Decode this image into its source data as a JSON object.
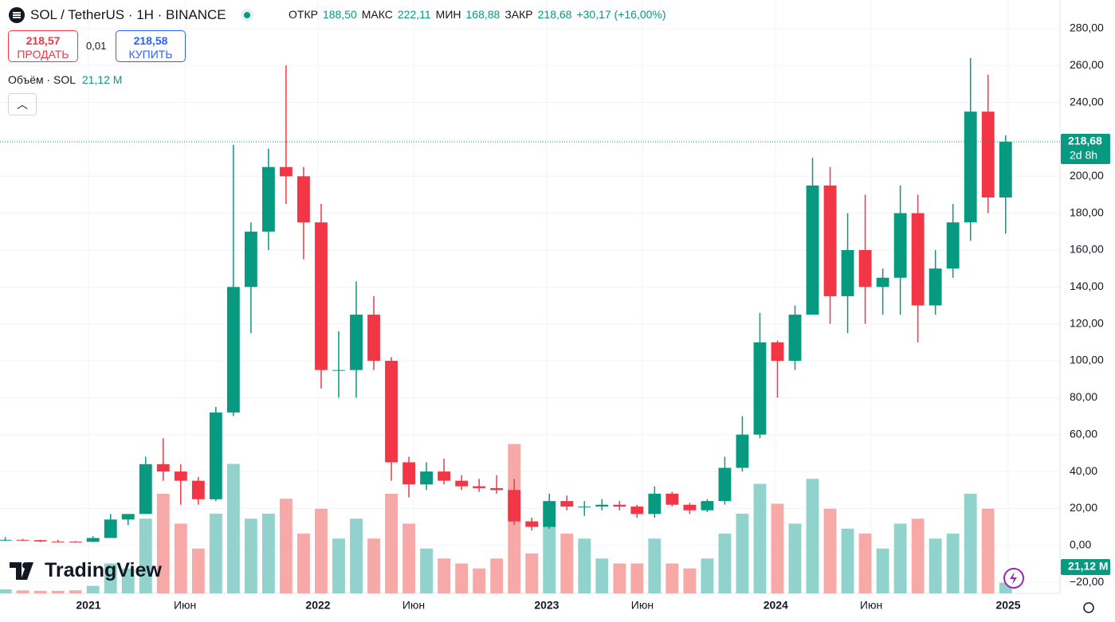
{
  "header": {
    "symbol": "SOL / TetherUS · 1H · BINANCE",
    "ohlc": [
      {
        "label": "ОТКР",
        "value": "188,50"
      },
      {
        "label": "МАКС",
        "value": "222,11"
      },
      {
        "label": "МИН",
        "value": "168,88"
      },
      {
        "label": "ЗАКР",
        "value": "218,68"
      }
    ],
    "change": "+30,17 (+16,00%)"
  },
  "trade": {
    "sell_price": "218,57",
    "sell_label": "ПРОДАТЬ",
    "spread": "0,01",
    "buy_price": "218,58",
    "buy_label": "КУПИТЬ"
  },
  "volume_legend": {
    "label": "Объём · SOL",
    "value": "21,12 M"
  },
  "logo": "TradingView",
  "chart_data": {
    "type": "candlestick",
    "up_color": "#089981",
    "down_color": "#f23645",
    "volume_up_color": "#92d2cc",
    "volume_down_color": "#f7a9a7",
    "candles": [
      [
        3,
        4.5,
        2.5,
        3
      ],
      [
        3,
        3.5,
        2.5,
        2.8
      ],
      [
        2.8,
        3,
        1.8,
        2.1
      ],
      [
        2.1,
        3,
        1.9,
        2
      ],
      [
        2,
        2.3,
        1.5,
        1.9
      ],
      [
        1.9,
        5,
        1.8,
        4
      ],
      [
        4,
        17,
        4,
        14
      ],
      [
        14,
        17,
        11,
        17
      ],
      [
        17,
        48,
        17,
        44
      ],
      [
        44,
        58,
        35,
        40
      ],
      [
        40,
        44,
        22,
        35
      ],
      [
        35,
        37,
        22,
        25
      ],
      [
        25,
        75,
        24,
        72
      ],
      [
        72,
        217,
        70,
        140
      ],
      [
        140,
        175,
        115,
        170
      ],
      [
        170,
        215,
        160,
        205
      ],
      [
        205,
        260,
        185,
        200
      ],
      [
        200,
        205,
        155,
        175
      ],
      [
        175,
        185,
        85,
        95
      ],
      [
        95,
        116,
        80,
        95
      ],
      [
        95,
        143,
        80,
        125
      ],
      [
        125,
        135,
        95,
        100
      ],
      [
        100,
        102,
        35,
        45
      ],
      [
        45,
        48,
        26,
        33
      ],
      [
        33,
        45,
        30,
        40
      ],
      [
        40,
        47,
        33,
        35
      ],
      [
        35,
        38,
        30,
        32
      ],
      [
        32,
        36,
        29,
        31
      ],
      [
        31,
        38,
        28,
        30
      ],
      [
        30,
        36,
        11,
        13
      ],
      [
        13,
        15,
        8,
        10
      ],
      [
        10,
        28,
        9,
        24
      ],
      [
        24,
        27,
        19,
        21
      ],
      [
        21,
        24,
        16,
        21
      ],
      [
        21,
        25,
        19,
        22
      ],
      [
        22,
        24,
        19,
        21
      ],
      [
        21,
        22,
        15,
        17
      ],
      [
        17,
        32,
        15,
        28
      ],
      [
        28,
        29,
        21,
        22
      ],
      [
        22,
        23,
        17,
        19
      ],
      [
        19,
        25,
        18,
        24
      ],
      [
        24,
        48,
        22,
        42
      ],
      [
        42,
        70,
        40,
        60
      ],
      [
        60,
        126,
        58,
        110
      ],
      [
        110,
        111,
        80,
        100
      ],
      [
        100,
        130,
        95,
        125
      ],
      [
        125,
        210,
        125,
        195
      ],
      [
        195,
        205,
        120,
        135
      ],
      [
        135,
        180,
        115,
        160
      ],
      [
        160,
        190,
        120,
        140
      ],
      [
        140,
        150,
        125,
        145
      ],
      [
        145,
        195,
        125,
        180
      ],
      [
        180,
        190,
        110,
        130
      ],
      [
        130,
        160,
        125,
        150
      ],
      [
        150,
        185,
        145,
        175
      ],
      [
        175,
        264,
        165,
        235
      ],
      [
        235,
        255,
        180,
        188.5
      ],
      [
        188.5,
        222.11,
        168.88,
        218.68
      ]
    ],
    "volume": [
      8,
      6,
      5,
      5,
      6,
      15,
      60,
      50,
      150,
      200,
      140,
      90,
      160,
      260,
      150,
      160,
      190,
      120,
      170,
      110,
      150,
      110,
      200,
      140,
      90,
      70,
      60,
      50,
      70,
      300,
      80,
      170,
      120,
      110,
      70,
      60,
      60,
      110,
      60,
      50,
      70,
      120,
      160,
      220,
      180,
      140,
      230,
      170,
      130,
      120,
      90,
      140,
      150,
      110,
      120,
      200,
      170,
      21.12
    ],
    "volume_lim": [
      0,
      320
    ],
    "xlim": [
      -0.3,
      60.1
    ],
    "xticks": [
      {
        "value": 4.74,
        "label": "2021"
      },
      {
        "value": 10.24,
        "label": "Июн"
      },
      {
        "value": 17.82,
        "label": "2022"
      },
      {
        "value": 23.27,
        "label": "Июн"
      },
      {
        "value": 30.85,
        "label": "2023"
      },
      {
        "value": 36.3,
        "label": "Июн"
      },
      {
        "value": 43.9,
        "label": "2024"
      },
      {
        "value": 49.34,
        "label": "Июн"
      },
      {
        "value": 57.15,
        "label": "2025"
      }
    ],
    "ylim": [
      -26,
      295.5
    ],
    "yticks": [
      {
        "value": -20,
        "label": "−20,00"
      },
      {
        "value": 0,
        "label": "0,00"
      },
      {
        "value": 20,
        "label": "20,00"
      },
      {
        "value": 40,
        "label": "40,00"
      },
      {
        "value": 60,
        "label": "60,00"
      },
      {
        "value": 80,
        "label": "80,00"
      },
      {
        "value": 100,
        "label": "100,00"
      },
      {
        "value": 120,
        "label": "120,00"
      },
      {
        "value": 140,
        "label": "140,00"
      },
      {
        "value": 160,
        "label": "160,00"
      },
      {
        "value": 180,
        "label": "180,00"
      },
      {
        "value": 200,
        "label": "200,00"
      },
      {
        "value": 220,
        "label": "220,00"
      },
      {
        "value": 240,
        "label": "240,00"
      },
      {
        "value": 260,
        "label": "260,00"
      },
      {
        "value": 280,
        "label": "280,00"
      }
    ],
    "last_price": {
      "value": 218.68,
      "label": "218,68"
    },
    "countdown": "2d 8h",
    "grid": true
  }
}
